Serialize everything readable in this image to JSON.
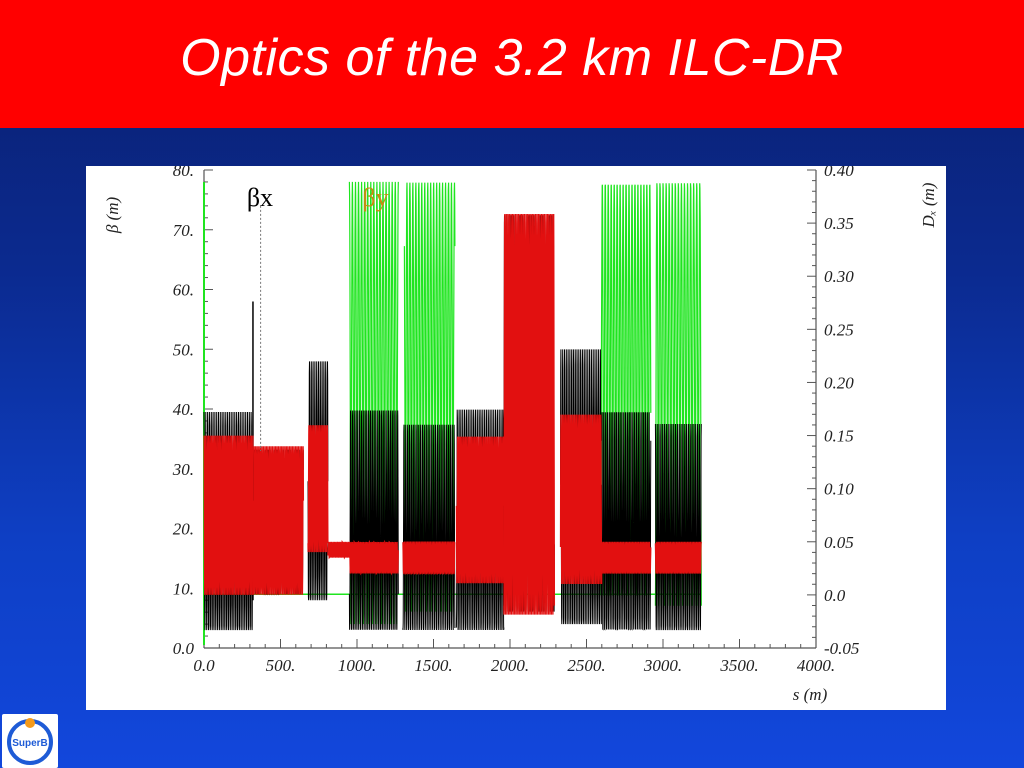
{
  "slide": {
    "title": "Optics of the 3.2 km ILC-DR",
    "logo_text": "SuperB"
  },
  "colors": {
    "title_bar": "#ff0000",
    "background": "#0b2a8f",
    "beta_x": "#000000",
    "beta_y": "#1fe51f",
    "dispersion": "#ff0000"
  },
  "chart_data": {
    "type": "line",
    "xlabel": "s (m)",
    "ylabel": "β (m)",
    "y2label": "Dₓ (m)",
    "xlim": [
      0,
      4000
    ],
    "ylim": [
      0,
      80
    ],
    "y2lim": [
      -0.05,
      0.4
    ],
    "x_ticks": [
      "0.0",
      "500.",
      "1000.",
      "1500.",
      "2000.",
      "2500.",
      "3000.",
      "3500.",
      "4000."
    ],
    "y_ticks": [
      "0.0",
      "10.",
      "20.",
      "30.",
      "40.",
      "50.",
      "60.",
      "70.",
      "80."
    ],
    "y2_ticks": [
      "-0.05",
      "0.0",
      "0.05",
      "0.10",
      "0.15",
      "0.20",
      "0.25",
      "0.30",
      "0.35",
      "0.40"
    ],
    "legend": [
      {
        "label": "βx",
        "color": "#000000"
      },
      {
        "label": "βy",
        "color": "#1fe51f"
      }
    ],
    "grid": false,
    "sections_beta_x": [
      {
        "from": 0,
        "to": 320,
        "min": 3,
        "max": 39.5
      },
      {
        "from": 320,
        "to": 650,
        "min": 9,
        "max": 33.5
      },
      {
        "from": 680,
        "to": 810,
        "min": 8,
        "max": 48
      },
      {
        "from": 950,
        "to": 1270,
        "min": 3,
        "max": 40
      },
      {
        "from": 1300,
        "to": 1640,
        "min": 3,
        "max": 37.5
      },
      {
        "from": 1650,
        "to": 1960,
        "min": 3,
        "max": 40
      },
      {
        "from": 1960,
        "to": 2290,
        "min": 6,
        "max": 73
      },
      {
        "from": 2330,
        "to": 2600,
        "min": 4,
        "max": 50
      },
      {
        "from": 2600,
        "to": 2920,
        "min": 3,
        "max": 40
      },
      {
        "from": 2950,
        "to": 3250,
        "min": 3,
        "max": 37.5
      }
    ],
    "sections_beta_y": [
      {
        "from": 950,
        "to": 1270,
        "min": 4,
        "max": 78
      },
      {
        "from": 1310,
        "to": 1640,
        "min": 4,
        "max": 78
      },
      {
        "from": 2590,
        "to": 2920,
        "min": 4,
        "max": 78
      },
      {
        "from": 2950,
        "to": 3250,
        "min": 4,
        "max": 78
      }
    ],
    "sections_dispersion": [
      {
        "from": 0,
        "to": 320,
        "min": 0.0,
        "max": 0.15
      },
      {
        "from": 320,
        "to": 650,
        "min": 0.0,
        "max": 0.14
      },
      {
        "from": 680,
        "to": 810,
        "min": 0.04,
        "max": 0.16
      },
      {
        "from": 810,
        "to": 950,
        "min": 0.035,
        "max": 0.05
      },
      {
        "from": 950,
        "to": 1270,
        "min": 0.02,
        "max": 0.05
      },
      {
        "from": 1300,
        "to": 1640,
        "min": 0.02,
        "max": 0.05
      },
      {
        "from": 1650,
        "to": 1960,
        "min": 0.01,
        "max": 0.15
      },
      {
        "from": 1960,
        "to": 2290,
        "min": -0.02,
        "max": 0.36
      },
      {
        "from": 2330,
        "to": 2600,
        "min": 0.01,
        "max": 0.17
      },
      {
        "from": 2600,
        "to": 2920,
        "min": 0.02,
        "max": 0.05
      },
      {
        "from": 2950,
        "to": 3250,
        "min": 0.02,
        "max": 0.05
      }
    ]
  }
}
